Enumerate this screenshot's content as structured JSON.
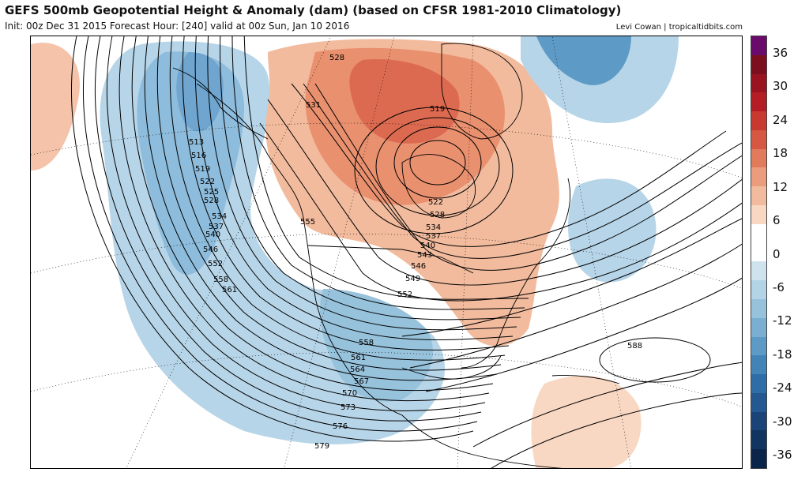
{
  "header": {
    "title": "GEFS 500mb Geopotential Height & Anomaly (dam) (based on CFSR 1981-2010 Climatology)",
    "subtitle": "Init: 00z Dec 31 2015   Forecast Hour: [240]   valid at 00z Sun, Jan 10 2016",
    "credit": "Levi Cowan | tropicaltidbits.com"
  },
  "colorbar": {
    "labels": [
      "36",
      "30",
      "24",
      "18",
      "12",
      "6",
      "0",
      "-6",
      "-12",
      "-18",
      "-24",
      "-30",
      "-36"
    ],
    "colors": [
      "#6a0a6a",
      "#7c0f1e",
      "#9a1320",
      "#b51d25",
      "#c8392f",
      "#d65842",
      "#e27a5c",
      "#eb9c7d",
      "#f2bb9e",
      "#f8d7c3",
      "#ffffff",
      "#ffffff",
      "#cfe3ef",
      "#b3d3e6",
      "#97c2dc",
      "#7aafd2",
      "#5d9bc6",
      "#4384b7",
      "#2f6da6",
      "#235890",
      "#1a4478",
      "#123461",
      "#0b244a"
    ]
  },
  "map": {
    "contour_labels": [
      "528",
      "531",
      "519",
      "513",
      "516",
      "519",
      "522",
      "525",
      "528",
      "534",
      "537",
      "540",
      "546",
      "552",
      "555",
      "558",
      "561",
      "522",
      "528",
      "534",
      "537",
      "540",
      "543",
      "546",
      "549",
      "552",
      "558",
      "561",
      "564",
      "567",
      "570",
      "573",
      "576",
      "579",
      "588"
    ],
    "colors": {
      "positive_anomaly": "#ec9a7a",
      "strong_positive": "#dc6a50",
      "negative_anomaly": "#b7d5e8",
      "strong_negative": "#6fa5cf",
      "contour": "#000000",
      "land": "#000000"
    }
  }
}
